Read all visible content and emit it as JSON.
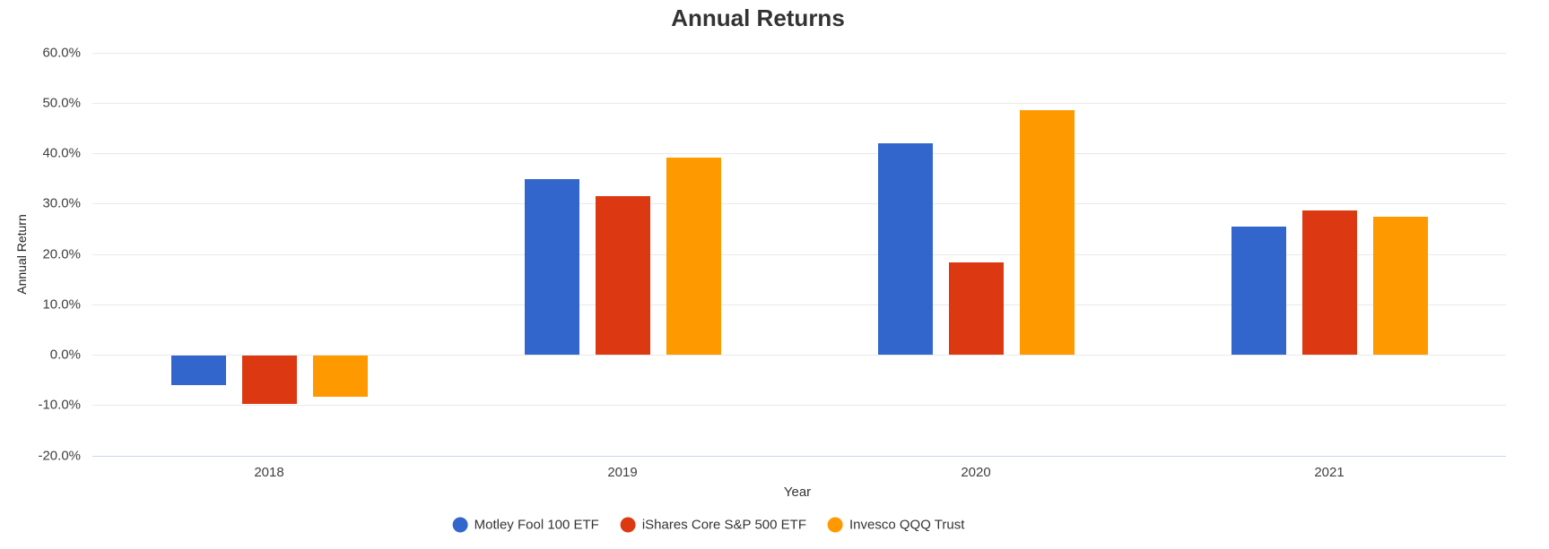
{
  "chart_data": {
    "type": "bar",
    "title": "Annual Returns",
    "xlabel": "Year",
    "ylabel": "Annual Return",
    "categories": [
      "2018",
      "2019",
      "2020",
      "2021"
    ],
    "series": [
      {
        "name": "Motley Fool 100 ETF",
        "color": "#3366cc",
        "values": [
          -5.9,
          34.8,
          42.0,
          25.5
        ]
      },
      {
        "name": "iShares Core S&P 500 ETF",
        "color": "#dc3912",
        "values": [
          -9.6,
          31.4,
          18.4,
          28.7
        ]
      },
      {
        "name": "Invesco QQQ Trust",
        "color": "#ff9900",
        "values": [
          -8.1,
          39.1,
          48.5,
          27.4
        ]
      }
    ],
    "ylim": [
      -20,
      60
    ],
    "y_tick_step": 10,
    "y_tick_labels": [
      "60.0%",
      "50.0%",
      "40.0%",
      "30.0%",
      "20.0%",
      "10.0%",
      "0.0%",
      "-10.0%",
      "-20.0%"
    ],
    "grid": true,
    "legend_position": "bottom",
    "colors": {
      "gridline": "#e9e9e9",
      "bottom_axis_line": "#ccd6eb",
      "tick_text": "#404040",
      "title_text": "#333333",
      "background": "#ffffff"
    }
  }
}
